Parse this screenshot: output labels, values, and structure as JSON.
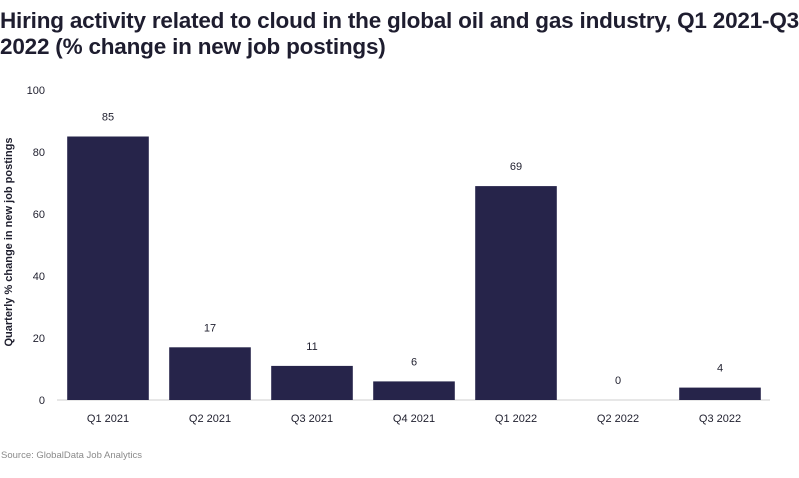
{
  "title": {
    "line1": "Hiring activity related to cloud in the global oil and gas industry, Q1 2021-Q3",
    "line2": "2022 (% change in new job postings)"
  },
  "source": "Source: GlobalData Job Analytics",
  "colors": {
    "bar": "#26244a",
    "text": "#1f1f2e",
    "axis_line": "#cfcfcf",
    "source": "#8a8a8a"
  },
  "chart_data": {
    "type": "bar",
    "categories": [
      "Q1 2021",
      "Q2 2021",
      "Q3 2021",
      "Q4 2021",
      "Q1 2022",
      "Q2 2022",
      "Q3 2022"
    ],
    "values": [
      85,
      17,
      11,
      6,
      69,
      0,
      4
    ],
    "data_labels": [
      "85",
      "17",
      "11",
      "6",
      "69",
      "0",
      "4"
    ],
    "xlabel": "",
    "ylabel": "Quarterly % change in new job postings",
    "ylim": [
      0,
      100
    ],
    "yticks": [
      0,
      20,
      40,
      60,
      80,
      100
    ],
    "grid": false,
    "legend": "none"
  }
}
